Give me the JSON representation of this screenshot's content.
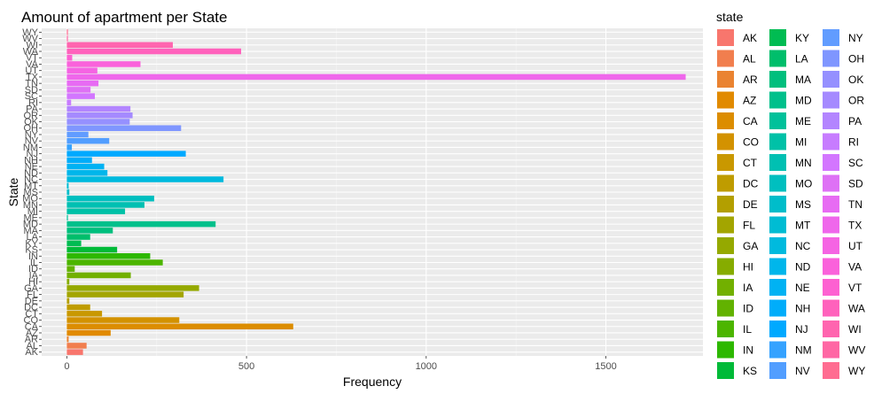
{
  "chart_data": {
    "type": "bar",
    "orientation": "horizontal",
    "title": "Amount of apartment per State",
    "xlabel": "Frequency",
    "ylabel": "State",
    "xlim": [
      -70,
      1770
    ],
    "x_ticks": [
      0,
      500,
      1000,
      1500
    ],
    "grid": true,
    "legend_title": "state",
    "legend_position": "right",
    "categories": [
      "AK",
      "AL",
      "AR",
      "AZ",
      "CA",
      "CO",
      "CT",
      "DC",
      "DE",
      "FL",
      "GA",
      "HI",
      "IA",
      "ID",
      "IL",
      "IN",
      "KS",
      "KY",
      "LA",
      "MA",
      "MD",
      "ME",
      "MI",
      "MN",
      "MO",
      "MS",
      "MT",
      "NC",
      "ND",
      "NE",
      "NH",
      "NJ",
      "NM",
      "NV",
      "NY",
      "OH",
      "OK",
      "OR",
      "PA",
      "RI",
      "SC",
      "SD",
      "TN",
      "TX",
      "UT",
      "VA",
      "VT",
      "WA",
      "WI",
      "WV",
      "WY"
    ],
    "values": [
      45,
      55,
      5,
      122,
      630,
      313,
      98,
      65,
      7,
      325,
      368,
      7,
      178,
      22,
      267,
      232,
      140,
      40,
      65,
      128,
      414,
      3,
      162,
      216,
      243,
      7,
      5,
      436,
      113,
      104,
      70,
      331,
      14,
      118,
      60,
      318,
      175,
      183,
      177,
      12,
      78,
      66,
      88,
      1722,
      85,
      205,
      15,
      485,
      295,
      3,
      3
    ],
    "colors": [
      "#F8766D",
      "#F17E4E",
      "#EA8331",
      "#E18A00",
      "#DC8D00",
      "#D39200",
      "#C99800",
      "#BF9C00",
      "#B39F00",
      "#A3A500",
      "#95A900",
      "#86AC00",
      "#72B000",
      "#62B200",
      "#4CB500",
      "#2DB800",
      "#00BA38",
      "#00BC52",
      "#00BE6B",
      "#00BF7D",
      "#00C08B",
      "#00C19A",
      "#00C1A7",
      "#00C0B2",
      "#00BFBF",
      "#00BDCA",
      "#00BCD3",
      "#00BADE",
      "#00B6EB",
      "#00B2F3",
      "#00ADFA",
      "#00A9FF",
      "#35A2FF",
      "#529EFF",
      "#619CFF",
      "#7F96FF",
      "#9590FF",
      "#A58AFF",
      "#B385FF",
      "#C77CFF",
      "#D376FF",
      "#DE71F5",
      "#E76BF3",
      "#EF67EB",
      "#F564E3",
      "#FA62DB",
      "#FD61D1",
      "#FF62BC",
      "#FF65AF",
      "#FF67A4",
      "#FF6C91"
    ]
  }
}
